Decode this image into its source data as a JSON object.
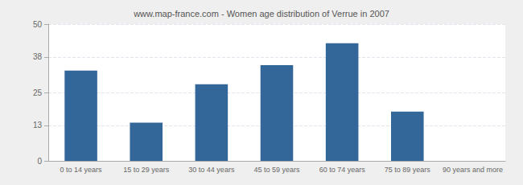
{
  "chart_data": {
    "type": "bar",
    "title": "www.map-france.com - Women age distribution of Verrue in 2007",
    "categories": [
      "0 to 14 years",
      "15 to 29 years",
      "30 to 44 years",
      "45 to 59 years",
      "60 to 74 years",
      "75 to 89 years",
      "90 years and more"
    ],
    "values": [
      33,
      14,
      28,
      35,
      43,
      18,
      0
    ],
    "color": "#336699",
    "ylim": [
      0,
      50
    ],
    "yticks": [
      0,
      13,
      25,
      38,
      50
    ],
    "grid": true
  }
}
